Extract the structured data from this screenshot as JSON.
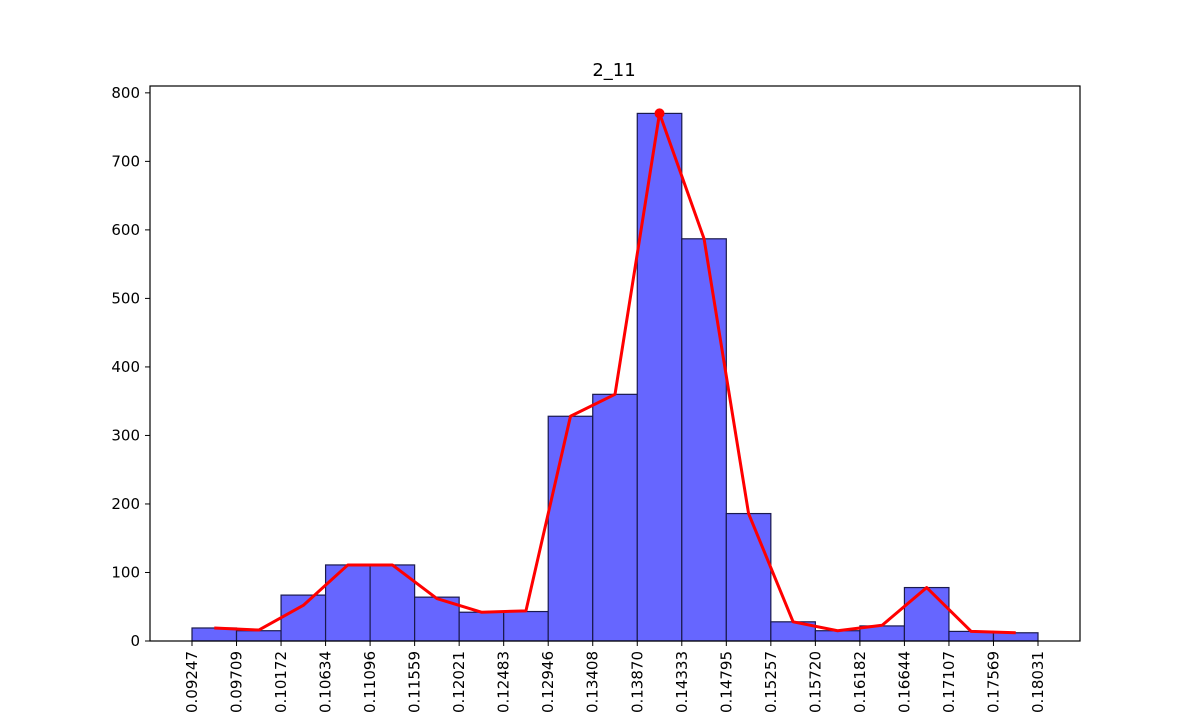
{
  "chart_data": {
    "type": "bar",
    "title": "2_11",
    "xlabel": "",
    "ylabel": "",
    "bin_edges": [
      "0.09247",
      "0.09709",
      "0.10172",
      "0.10634",
      "0.11096",
      "0.11559",
      "0.12021",
      "0.12483",
      "0.12946",
      "0.13408",
      "0.13870",
      "0.14333",
      "0.14795",
      "0.15257",
      "0.15720",
      "0.16182",
      "0.16644",
      "0.17107",
      "0.17569",
      "0.18031"
    ],
    "values": [
      19,
      15,
      67,
      111,
      111,
      64,
      42,
      43,
      328,
      360,
      770,
      587,
      186,
      28,
      15,
      22,
      78,
      14,
      12
    ],
    "line_values": [
      19,
      16,
      52,
      111,
      111,
      62,
      42,
      44,
      328,
      360,
      770,
      587,
      186,
      28,
      15,
      23,
      78,
      14,
      12
    ],
    "peak": {
      "bin_index": 10,
      "value": 770
    },
    "ylim": [
      0,
      810
    ],
    "yticks": [
      0,
      100,
      200,
      300,
      400,
      500,
      600,
      700,
      800
    ],
    "bar_color": "#6666ff",
    "bar_edge_color": "#1a1a4d",
    "line_color": "#ff0000",
    "grid": false
  }
}
